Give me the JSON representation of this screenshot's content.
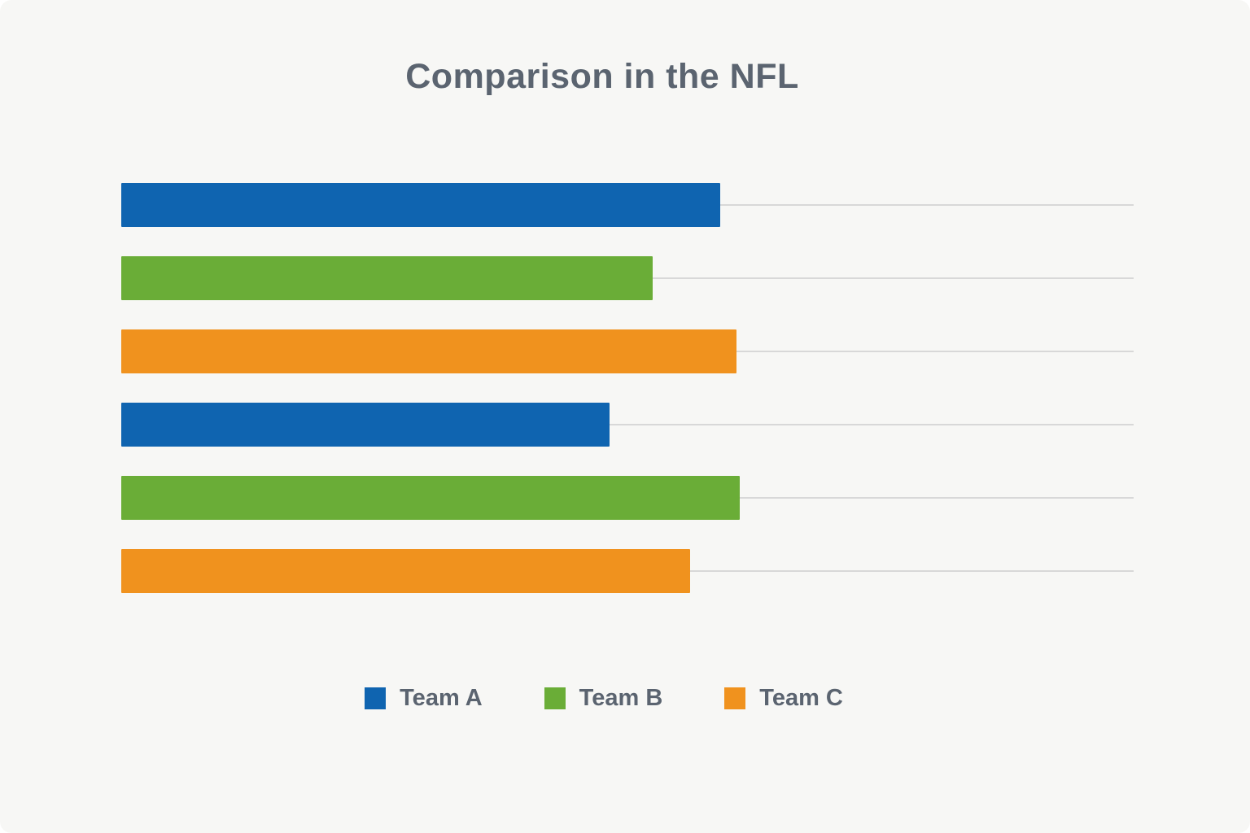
{
  "page": {
    "background_color": "#f7f7f5",
    "text_color": "#5b6470",
    "gridline_color": "#d8d8d8"
  },
  "chart_data": {
    "type": "bar",
    "orientation": "horizontal",
    "title": "Comparison in the NFL",
    "xlabel": "",
    "ylabel": "",
    "xlim": [
      0,
      100
    ],
    "grid": true,
    "axis_tick_labels_visible": false,
    "legend_position": "bottom",
    "categories": [
      "",
      ""
    ],
    "series": [
      {
        "name": "Team A",
        "color": "#0f64b0",
        "values": [
          59.2,
          48.2
        ]
      },
      {
        "name": "Team B",
        "color": "#6aad37",
        "values": [
          52.5,
          61.1
        ]
      },
      {
        "name": "Team C",
        "color": "#f0921e",
        "values": [
          60.8,
          56.2
        ]
      }
    ],
    "bars": [
      {
        "label": "Team A",
        "value": 59.2,
        "color": "#0f64b0"
      },
      {
        "label": "Team B",
        "value": 52.5,
        "color": "#6aad37"
      },
      {
        "label": "Team C",
        "value": 60.8,
        "color": "#f0921e"
      },
      {
        "label": "Team A",
        "value": 48.2,
        "color": "#0f64b0"
      },
      {
        "label": "Team B",
        "value": 61.1,
        "color": "#6aad37"
      },
      {
        "label": "Team C",
        "value": 56.2,
        "color": "#f0921e"
      }
    ],
    "legend": [
      {
        "label": "Team A",
        "color": "#0f64b0"
      },
      {
        "label": "Team B",
        "color": "#6aad37"
      },
      {
        "label": "Team C",
        "color": "#f0921e"
      }
    ]
  }
}
